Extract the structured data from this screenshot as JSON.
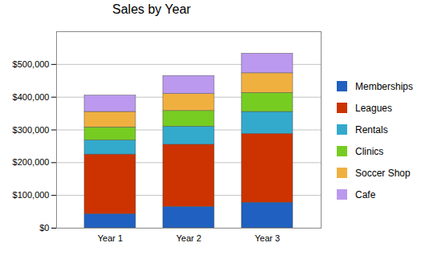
{
  "chart_data": {
    "type": "bar",
    "title": "Sales by Year",
    "stacked": true,
    "grid": true,
    "legend": "right",
    "categories": [
      "Year 1",
      "Year 2",
      "Year 3"
    ],
    "series": [
      {
        "name": "Memberships",
        "color": "#2060c0",
        "values": [
          43000,
          65000,
          78000
        ]
      },
      {
        "name": "Leagues",
        "color": "#cc3300",
        "values": [
          182000,
          190000,
          210000
        ]
      },
      {
        "name": "Rentals",
        "color": "#33aacc",
        "values": [
          43000,
          55000,
          67000
        ]
      },
      {
        "name": "Clinics",
        "color": "#77cc22",
        "values": [
          40000,
          48000,
          58000
        ]
      },
      {
        "name": "Soccer Shop",
        "color": "#f0b040",
        "values": [
          47000,
          52000,
          60000
        ]
      },
      {
        "name": "Cafe",
        "color": "#bb99ee",
        "values": [
          50000,
          55000,
          60000
        ]
      }
    ],
    "ylim": [
      0,
      600000
    ],
    "yticks": [
      {
        "value": 0,
        "label": "$0"
      },
      {
        "value": 100000,
        "label": "$100,000"
      },
      {
        "value": 200000,
        "label": "$200,000"
      },
      {
        "value": 300000,
        "label": "$300,000"
      },
      {
        "value": 400000,
        "label": "$400,000"
      },
      {
        "value": 500000,
        "label": "$500,000"
      }
    ]
  }
}
